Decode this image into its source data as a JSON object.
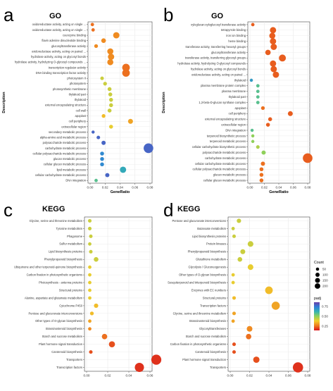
{
  "chart_data": [
    {
      "type": "scatter",
      "panel_letter": "a",
      "title": "GO",
      "xlabel": "GeneRatio",
      "ylabel": "Description",
      "xlim": [
        0,
        0.08
      ],
      "xticks": [
        "0.00",
        "0.02",
        "0.04",
        "0.06",
        "0.08"
      ],
      "points": [
        {
          "label": "oxidoreductase activity, acting on single ...",
          "x": 0.003,
          "count": 8,
          "padj": 0.015
        },
        {
          "label": "oxidoreductase activity, acting on single ...",
          "x": 0.004,
          "count": 8,
          "padj": 0.015
        },
        {
          "label": "coenzyme binding",
          "x": 0.035,
          "count": 60,
          "padj": 0.02
        },
        {
          "label": "flavin adenine dinucleotide binding",
          "x": 0.018,
          "count": 25,
          "padj": 0.02
        },
        {
          "label": "glucosyltransferase activity",
          "x": 0.008,
          "count": 12,
          "padj": 0.02
        },
        {
          "label": "oxidoreductase activity, acting on paired ...",
          "x": 0.027,
          "count": 55,
          "padj": 0.02
        },
        {
          "label": "hydrolase activity, acting on glycosyl bonds",
          "x": 0.028,
          "count": 60,
          "padj": 0.02
        },
        {
          "label": "hydrolase activity, hydrolyzing O-glycosyl compounds ...",
          "x": 0.027,
          "count": 55,
          "padj": 0.02
        },
        {
          "label": "transcription regulator activity",
          "x": 0.048,
          "count": 100,
          "padj": 0.015
        },
        {
          "label": "DNA binding transcription factor activity",
          "x": 0.048,
          "count": 100,
          "padj": 0.015
        },
        {
          "label": "photosystem II",
          "x": 0.016,
          "count": 10,
          "padj": 0.04
        },
        {
          "label": "photosystem",
          "x": 0.02,
          "count": 12,
          "padj": 0.04
        },
        {
          "label": "photosynthetic membrane",
          "x": 0.026,
          "count": 14,
          "padj": 0.04
        },
        {
          "label": "thylakoid part",
          "x": 0.027,
          "count": 14,
          "padj": 0.04
        },
        {
          "label": "thylakoid",
          "x": 0.028,
          "count": 14,
          "padj": 0.04
        },
        {
          "label": "external encapsulating structure",
          "x": 0.028,
          "count": 14,
          "padj": 0.04
        },
        {
          "label": "cell wall",
          "x": 0.026,
          "count": 14,
          "padj": 0.04
        },
        {
          "label": "apoplast",
          "x": 0.018,
          "count": 12,
          "padj": 0.03
        },
        {
          "label": "cell periphery",
          "x": 0.054,
          "count": 30,
          "padj": 0.025
        },
        {
          "label": "extracellular region",
          "x": 0.028,
          "count": 14,
          "padj": 0.035
        },
        {
          "label": "secondary metabolic process",
          "x": 0.004,
          "count": 6,
          "padj": 0.09
        },
        {
          "label": "alpha-amino acid metabolic process",
          "x": 0.011,
          "count": 10,
          "padj": 0.09
        },
        {
          "label": "polysaccharide metabolic process",
          "x": 0.018,
          "count": 18,
          "padj": 0.09
        },
        {
          "label": "carbohydrate metabolic process",
          "x": 0.078,
          "count": 180,
          "padj": 0.09
        },
        {
          "label": "cellular polysaccharide metabolic process",
          "x": 0.016,
          "count": 14,
          "padj": 0.08
        },
        {
          "label": "glucan metabolic process",
          "x": 0.016,
          "count": 14,
          "padj": 0.08
        },
        {
          "label": "cellular glucan metabolic process",
          "x": 0.016,
          "count": 14,
          "padj": 0.08
        },
        {
          "label": "lipid metabolic process",
          "x": 0.044,
          "count": 60,
          "padj": 0.07
        },
        {
          "label": "cellular carbohydrate metabolic process",
          "x": 0.023,
          "count": 18,
          "padj": 0.09
        },
        {
          "label": "DNA integration",
          "x": 0.008,
          "count": 8,
          "padj": 0.06
        }
      ]
    },
    {
      "type": "scatter",
      "panel_letter": "b",
      "title": "GO",
      "xlabel": "GeneRatio",
      "ylabel": "Description",
      "xlim": [
        0,
        0.08
      ],
      "xticks": [
        "0.00",
        "0.02",
        "0.04",
        "0.06",
        "0.08"
      ],
      "points": [
        {
          "label": "xyloglucan:xyloglucosyl transferase activity",
          "x": 0.004,
          "count": 8,
          "padj": 0.012
        },
        {
          "label": "tetrapyrrole binding",
          "x": 0.032,
          "count": 60,
          "padj": 0.012
        },
        {
          "label": "iron ion binding",
          "x": 0.031,
          "count": 55,
          "padj": 0.012
        },
        {
          "label": "heme binding",
          "x": 0.032,
          "count": 60,
          "padj": 0.012
        },
        {
          "label": "transferase activity, transferring hexosyl groups",
          "x": 0.033,
          "count": 60,
          "padj": 0.012
        },
        {
          "label": "glucosyltransferase activity",
          "x": 0.025,
          "count": 40,
          "padj": 0.012
        },
        {
          "label": "transferase activity, transferring glycosyl groups",
          "x": 0.045,
          "count": 80,
          "padj": 0.012
        },
        {
          "label": "hydrolase activity, hydrolyzing O-glycosyl compounds",
          "x": 0.032,
          "count": 60,
          "padj": 0.012
        },
        {
          "label": "hydrolase activity, acting on glycosyl bonds",
          "x": 0.033,
          "count": 60,
          "padj": 0.012
        },
        {
          "label": "oxidoreductase activity, acting on paired ...",
          "x": 0.036,
          "count": 60,
          "padj": 0.012
        },
        {
          "label": "thylakoid",
          "x": 0.002,
          "count": 6,
          "padj": 0.075
        },
        {
          "label": "plasma membrane protein complex",
          "x": 0.011,
          "count": 8,
          "padj": 0.06
        },
        {
          "label": "plasma membrane",
          "x": 0.011,
          "count": 8,
          "padj": 0.06
        },
        {
          "label": "thylakoid part",
          "x": 0.011,
          "count": 8,
          "padj": 0.06
        },
        {
          "label": "1,3-beta-D-glucan synthase complex",
          "x": 0.011,
          "count": 8,
          "padj": 0.06
        },
        {
          "label": "apoplast",
          "x": 0.018,
          "count": 12,
          "padj": 0.015
        },
        {
          "label": "cell periphery",
          "x": 0.056,
          "count": 30,
          "padj": 0.012
        },
        {
          "label": "external encapsulating structure",
          "x": 0.028,
          "count": 14,
          "padj": 0.012
        },
        {
          "label": "extracellular region",
          "x": 0.025,
          "count": 14,
          "padj": 0.012
        },
        {
          "label": "DNA integration",
          "x": 0.003,
          "count": 6,
          "padj": 0.06
        },
        {
          "label": "terpenoid biosynthetic process",
          "x": 0.004,
          "count": 6,
          "padj": 0.05
        },
        {
          "label": "terpenoid metabolic process",
          "x": 0.004,
          "count": 6,
          "padj": 0.05
        },
        {
          "label": "cellular carbohydrate biosynthetic process",
          "x": 0.011,
          "count": 10,
          "padj": 0.045
        },
        {
          "label": "polysaccharide metabolic process",
          "x": 0.019,
          "count": 18,
          "padj": 0.05
        },
        {
          "label": "carbohydrate metabolic process",
          "x": 0.08,
          "count": 180,
          "padj": 0.012
        },
        {
          "label": "cellular carbohydrate metabolic process",
          "x": 0.018,
          "count": 18,
          "padj": 0.015
        },
        {
          "label": "cellular polysaccharide metabolic process",
          "x": 0.016,
          "count": 14,
          "padj": 0.015
        },
        {
          "label": "glucan metabolic process",
          "x": 0.016,
          "count": 14,
          "padj": 0.015
        },
        {
          "label": "cellular glucan metabolic process",
          "x": 0.016,
          "count": 14,
          "padj": 0.015
        }
      ]
    },
    {
      "type": "scatter",
      "panel_letter": "c",
      "title": "KEGG",
      "xlabel": "",
      "ylabel": "",
      "xlim": [
        0,
        0.06
      ],
      "xticks": [
        "0.00",
        "0.02",
        "0.04",
        "0.06"
      ],
      "points": [
        {
          "label": "Glycine, serine and threonine metabolism",
          "x": 0.003,
          "count": 10,
          "padj": 0.04
        },
        {
          "label": "Tyrosine metabolism",
          "x": 0.003,
          "count": 10,
          "padj": 0.04
        },
        {
          "label": "Phagosome",
          "x": 0.004,
          "count": 10,
          "padj": 0.04
        },
        {
          "label": "Sulfur metabolism",
          "x": 0.003,
          "count": 8,
          "padj": 0.04
        },
        {
          "label": "Lipid biosynthesis proteins",
          "x": 0.004,
          "count": 10,
          "padj": 0.04
        },
        {
          "label": "Phenylpropanoid biosynthesis",
          "x": 0.009,
          "count": 25,
          "padj": 0.04
        },
        {
          "label": "Ubiquinone and other terpenoid-quinone biosynthesis",
          "x": 0.003,
          "count": 8,
          "padj": 0.035
        },
        {
          "label": "Carbon fixation in photosynthetic organisms",
          "x": 0.003,
          "count": 8,
          "padj": 0.035
        },
        {
          "label": "Photosynthesis - antenna proteins",
          "x": 0.003,
          "count": 8,
          "padj": 0.035
        },
        {
          "label": "Structural proteins",
          "x": 0.003,
          "count": 8,
          "padj": 0.035
        },
        {
          "label": "Alanine, aspartate and glutamate metabolism",
          "x": 0.003,
          "count": 8,
          "padj": 0.035
        },
        {
          "label": "Cytochrome P450",
          "x": 0.009,
          "count": 20,
          "padj": 0.03
        },
        {
          "label": "Pentose and glucuronate interconversions",
          "x": 0.005,
          "count": 12,
          "padj": 0.03
        },
        {
          "label": "Other types of O-glycan biosynthesis",
          "x": 0.003,
          "count": 8,
          "padj": 0.025
        },
        {
          "label": "Brassinosteroid biosynthesis",
          "x": 0.003,
          "count": 8,
          "padj": 0.02
        },
        {
          "label": "Starch and sucrose metabolism",
          "x": 0.017,
          "count": 40,
          "padj": 0.015
        },
        {
          "label": "Plant hormone signal transduction",
          "x": 0.024,
          "count": 55,
          "padj": 0.01
        },
        {
          "label": "Carotenoid biosynthesis",
          "x": 0.004,
          "count": 10,
          "padj": 0.01
        },
        {
          "label": "Transporters",
          "x": 0.066,
          "count": 200,
          "padj": 0.005
        },
        {
          "label": "Transcription factors",
          "x": 0.05,
          "count": 160,
          "padj": 0.005
        }
      ]
    },
    {
      "type": "scatter",
      "panel_letter": "d",
      "title": "KEGG",
      "xlabel": "",
      "ylabel": "",
      "xlim": [
        0,
        0.08
      ],
      "xticks": [
        "0.00",
        "0.02",
        "0.04",
        "0.06",
        "0.08"
      ],
      "points": [
        {
          "label": "Pentose and glucuronate interconversions",
          "x": 0.009,
          "count": 20,
          "padj": 0.04
        },
        {
          "label": "Butanoate metabolism",
          "x": 0.003,
          "count": 8,
          "padj": 0.04
        },
        {
          "label": "Lipid biosynthesis proteins",
          "x": 0.004,
          "count": 10,
          "padj": 0.04
        },
        {
          "label": "Protein kinases",
          "x": 0.021,
          "count": 45,
          "padj": 0.04
        },
        {
          "label": "Phenylpropanoid biosynthesis",
          "x": 0.013,
          "count": 30,
          "padj": 0.04
        },
        {
          "label": "Glutathione metabolism",
          "x": 0.01,
          "count": 25,
          "padj": 0.04
        },
        {
          "label": "Glycolysis / Gluconeogenesis",
          "x": 0.021,
          "count": 45,
          "padj": 0.035
        },
        {
          "label": "Other types of O-glycan biosynthesis",
          "x": 0.003,
          "count": 8,
          "padj": 0.035
        },
        {
          "label": "Sesquiterpenoid and triterpenoid biosynthesis",
          "x": 0.003,
          "count": 8,
          "padj": 0.035
        },
        {
          "label": "Enzymes with EC numbers",
          "x": 0.04,
          "count": 100,
          "padj": 0.03
        },
        {
          "label": "Structural proteins",
          "x": 0.004,
          "count": 10,
          "padj": 0.03
        },
        {
          "label": "Transcription factors",
          "x": 0.047,
          "count": 120,
          "padj": 0.025
        },
        {
          "label": "Glycine, serine and threonine metabolism",
          "x": 0.004,
          "count": 10,
          "padj": 0.025
        },
        {
          "label": "Brassinosteroid biosynthesis",
          "x": 0.003,
          "count": 8,
          "padj": 0.025
        },
        {
          "label": "Glycosyltransferases",
          "x": 0.02,
          "count": 45,
          "padj": 0.02
        },
        {
          "label": "Starch and sucrose metabolism",
          "x": 0.019,
          "count": 40,
          "padj": 0.015
        },
        {
          "label": "Carbon fixation in photosynthetic organisms",
          "x": 0.004,
          "count": 10,
          "padj": 0.01
        },
        {
          "label": "Carotenoid biosynthesis",
          "x": 0.004,
          "count": 10,
          "padj": 0.01
        },
        {
          "label": "Plant hormone signal transduction",
          "x": 0.027,
          "count": 60,
          "padj": 0.01
        },
        {
          "label": "Transporters",
          "x": 0.07,
          "count": 210,
          "padj": 0.005
        }
      ]
    }
  ],
  "legend": {
    "count_title": "Count",
    "count_values": [
      50,
      100,
      150,
      200
    ],
    "count_labels": [
      "50",
      "100",
      "150",
      "200"
    ],
    "padj_title": "padj",
    "padj_ticks": [
      "0.75",
      "0.50",
      "0.25"
    ],
    "padj_gradient": [
      "#6a3fa8",
      "#2f7fd8",
      "#34b3b1",
      "#8fd05a",
      "#f2cd2b",
      "#ee7a1f",
      "#d9121a"
    ]
  }
}
